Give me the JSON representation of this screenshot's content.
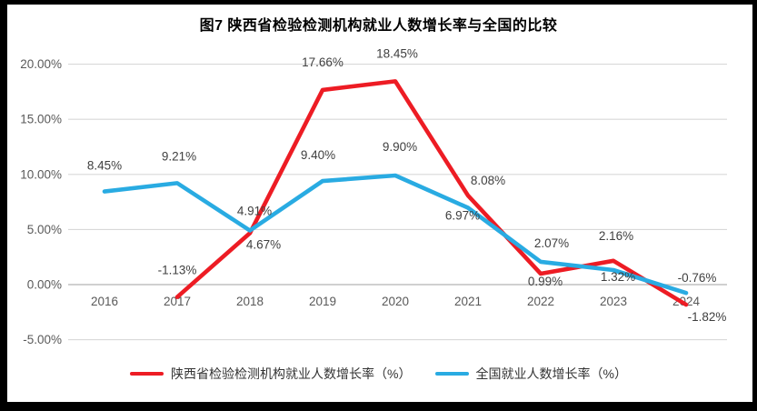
{
  "chart_data": {
    "type": "line",
    "title": "图7 陕西省检验检测机构就业人数增长率与全国的比较",
    "categories": [
      "2016",
      "2017",
      "2018",
      "2019",
      "2020",
      "2021",
      "2022",
      "2023",
      "2024"
    ],
    "series": [
      {
        "name": "陕西省检验检测机构就业人数增长率（%）",
        "color": "#ed1c24",
        "values": [
          null,
          -1.13,
          4.67,
          17.66,
          18.45,
          8.08,
          0.99,
          2.16,
          -1.82
        ],
        "labels": [
          "",
          "-1.13%",
          "4.67%",
          "17.66%",
          "18.45%",
          "8.08%",
          "0.99%",
          "2.16%",
          "-1.82%"
        ],
        "label_offsets": [
          [
            0,
            0
          ],
          [
            0,
            -25
          ],
          [
            15,
            17
          ],
          [
            0,
            -26
          ],
          [
            2,
            -26
          ],
          [
            22,
            -12
          ],
          [
            5,
            13
          ],
          [
            3,
            -23
          ],
          [
            23,
            18
          ]
        ]
      },
      {
        "name": "全国就业人数增长率（%）",
        "color": "#29abe2",
        "values": [
          8.45,
          9.21,
          4.91,
          9.4,
          9.9,
          6.97,
          2.07,
          1.32,
          -0.76
        ],
        "labels": [
          "8.45%",
          "9.21%",
          "4.91%",
          "9.40%",
          "9.90%",
          "6.97%",
          "2.07%",
          "1.32%",
          "-0.76%"
        ],
        "label_offsets": [
          [
            0,
            -24
          ],
          [
            2,
            -25
          ],
          [
            5,
            -17
          ],
          [
            -5,
            -24
          ],
          [
            5,
            -27
          ],
          [
            -6,
            13
          ],
          [
            12,
            -16
          ],
          [
            5,
            12
          ],
          [
            12,
            -12
          ]
        ]
      }
    ],
    "y_axis": {
      "ticks": [
        "20.00%",
        "15.00%",
        "10.00%",
        "5.00%",
        "0.00%",
        "-5.00%"
      ],
      "tick_values": [
        20,
        15,
        10,
        5,
        0,
        -5
      ],
      "min": -5,
      "max": 20
    },
    "grid": true,
    "legend_position": "bottom",
    "colors": {
      "frame": "#000000",
      "plot_background": "#ffffff",
      "gridline": "#d9d9d9",
      "zero_line": "#c0c0c0",
      "axis_text": "#595959",
      "data_label_text": "#3f3f3f"
    }
  }
}
